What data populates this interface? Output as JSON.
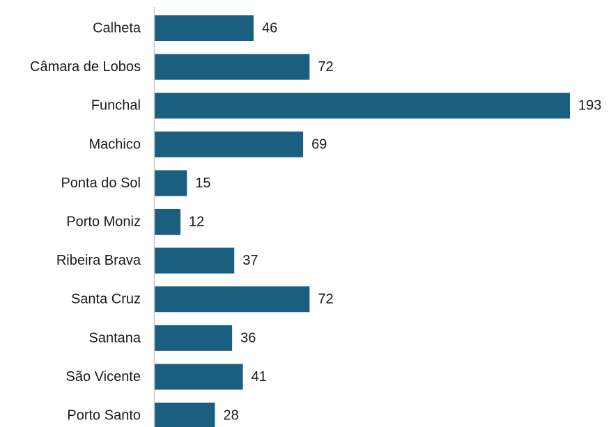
{
  "chart_data": {
    "type": "bar",
    "orientation": "horizontal",
    "categories": [
      "Calheta",
      "Câmara de Lobos",
      "Funchal",
      "Machico",
      "Ponta do Sol",
      "Porto Moniz",
      "Ribeira Brava",
      "Santa Cruz",
      "Santana",
      "São Vicente",
      "Porto Santo"
    ],
    "values": [
      46,
      72,
      193,
      69,
      15,
      12,
      37,
      72,
      36,
      41,
      28
    ],
    "title": "",
    "xlabel": "",
    "ylabel": "",
    "xlim": [
      0,
      193
    ],
    "grid": false,
    "legend": "none",
    "data_labels": true,
    "bar_color": "#1a5f80",
    "axis_color": "#c8c8c8"
  }
}
